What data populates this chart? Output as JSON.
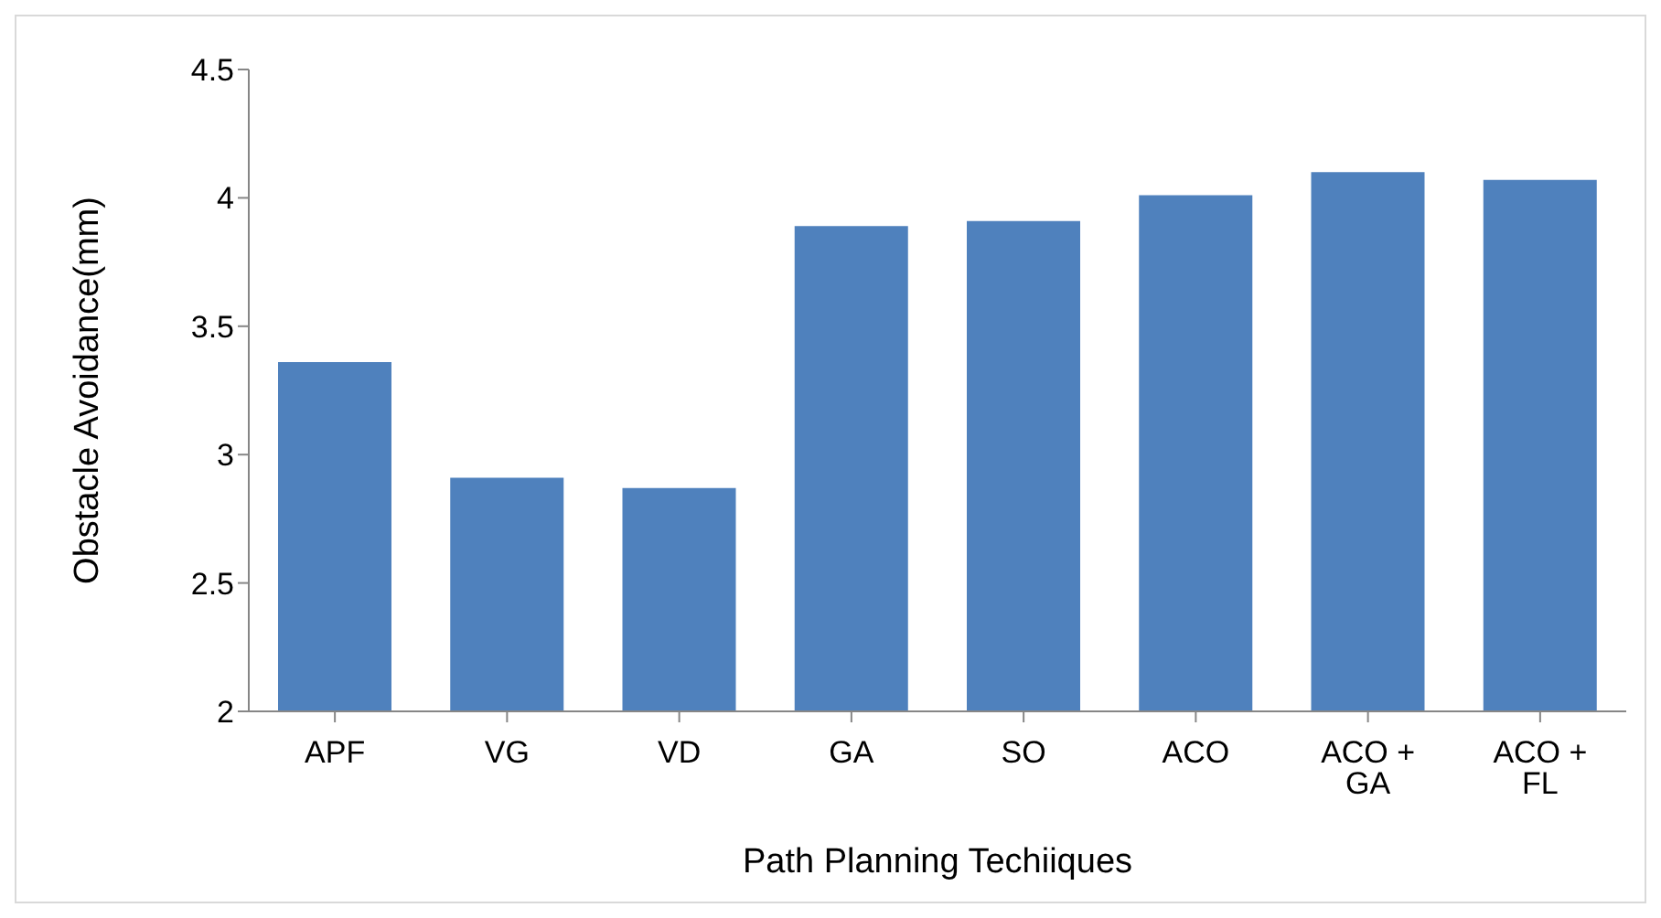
{
  "chart_data": {
    "type": "bar",
    "xlabel": "Path Planning Techiiques",
    "ylabel": "Obstacle Avoidance(mm)",
    "categories": [
      "APF",
      "VG",
      "VD",
      "GA",
      "SO",
      "ACO",
      "ACO + GA",
      "ACO + FL"
    ],
    "values": [
      3.36,
      2.91,
      2.87,
      3.89,
      3.91,
      4.01,
      4.1,
      4.07
    ],
    "color": "#4f81bd",
    "ylim": [
      2,
      4.5
    ],
    "yticks": [
      2,
      2.5,
      3,
      3.5,
      4,
      4.5
    ],
    "grid": false,
    "legend": false
  }
}
